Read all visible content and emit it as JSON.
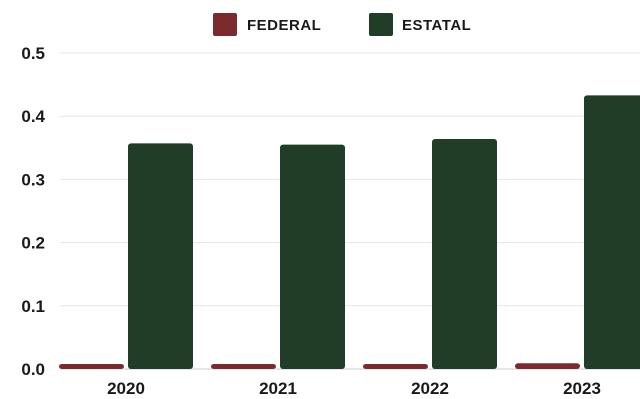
{
  "chart_data": {
    "type": "bar",
    "categories": [
      "2020",
      "2021",
      "2022",
      "2023"
    ],
    "series": [
      {
        "name": "FEDERAL",
        "color": "#7b2b2e",
        "values": [
          0.008,
          0.008,
          0.008,
          0.009
        ]
      },
      {
        "name": "ESTATAL",
        "color": "#223d27",
        "values": [
          0.357,
          0.355,
          0.364,
          0.433
        ]
      }
    ],
    "ylim": [
      0,
      0.5
    ],
    "yticks": [
      "0.0",
      "0.1",
      "0.2",
      "0.3",
      "0.4",
      "0.5"
    ],
    "grid": true,
    "legend_position": "top-center",
    "title": "",
    "xlabel": "",
    "ylabel": ""
  }
}
